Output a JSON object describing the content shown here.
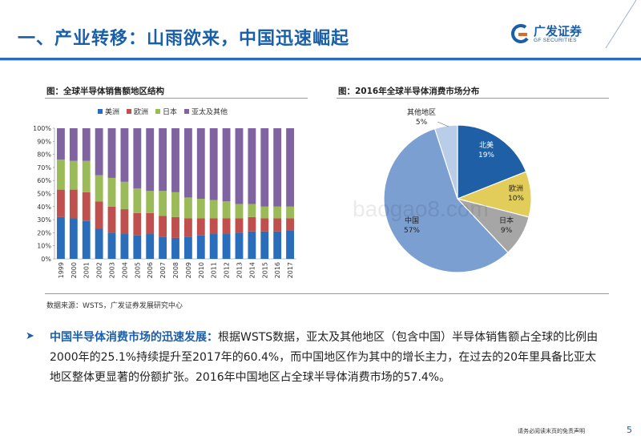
{
  "page": {
    "title": "一、产业转移：山雨欲来，中国迅速崛起",
    "logo_cn": "广发证券",
    "logo_en": "GF SECURITIES",
    "page_number": "5",
    "footer": "请务必阅读末页的免责声明",
    "watermark": "baogao8.com",
    "brand_color": "#1a5fa8"
  },
  "figures": {
    "left_caption": "图：全球半导体销售额地区结构",
    "right_caption": "图：2016年全球半导体消费市场分布",
    "source": "数据来源：WSTS，广发证券发展研究中心"
  },
  "paragraph": {
    "lead": "中国半导体消费市场的迅速发展：",
    "body": "根据WSTS数据，亚太及其他地区（包含中国）半导体销售额占全球的比例由2000年的25.1%持续提升至2017年的60.4%，而中国地区作为其中的增长主力，在过去的20年里具备比亚太地区整体更显著的份额扩张。2016年中国地区占全球半导体消费市场的57.4%。"
  },
  "chart_data": [
    {
      "type": "bar",
      "stacked": true,
      "categories": [
        "1999",
        "2000",
        "2001",
        "2002",
        "2003",
        "2004",
        "2005",
        "2006",
        "2007",
        "2008",
        "2009",
        "2010",
        "2011",
        "2012",
        "2013",
        "2014",
        "2015",
        "2016",
        "2017"
      ],
      "series": [
        {
          "name": "美洲",
          "color": "#2a6ebb",
          "values": [
            32,
            31,
            29,
            23,
            20,
            19,
            18,
            19,
            17,
            16,
            17,
            18,
            19,
            19,
            20,
            21,
            21,
            21,
            22
          ]
        },
        {
          "name": "欧洲",
          "color": "#c0504d",
          "values": [
            21,
            22,
            22,
            21,
            20,
            19,
            17,
            16,
            16,
            16,
            14,
            13,
            12,
            12,
            11,
            11,
            10,
            10,
            9
          ]
        },
        {
          "name": "日本",
          "color": "#9bbb59",
          "values": [
            23,
            22,
            24,
            20,
            22,
            21,
            19,
            17,
            19,
            19,
            16,
            15,
            14,
            13,
            11,
            10,
            9,
            9,
            9
          ]
        },
        {
          "name": "亚太及其他",
          "color": "#8064a2",
          "values": [
            24,
            25,
            25,
            36,
            38,
            41,
            46,
            48,
            48,
            49,
            53,
            54,
            55,
            56,
            58,
            58,
            60,
            60,
            60
          ]
        }
      ],
      "ylim": [
        0,
        100
      ],
      "yticks": [
        "0%",
        "10%",
        "20%",
        "30%",
        "40%",
        "50%",
        "60%",
        "70%",
        "80%",
        "90%",
        "100%"
      ],
      "legend_position": "top"
    },
    {
      "type": "pie",
      "slices": [
        {
          "label": "北美",
          "value": 19,
          "value_label": "19%",
          "color": "#1f5fa6"
        },
        {
          "label": "欧洲",
          "value": 10,
          "value_label": "10%",
          "color": "#e2cc5a"
        },
        {
          "label": "日本",
          "value": 9,
          "value_label": "9%",
          "color": "#a6a6a6"
        },
        {
          "label": "中国",
          "value": 57,
          "value_label": "57%",
          "color": "#7b9fd1"
        },
        {
          "label": "其他地区",
          "value": 5,
          "value_label": "5%",
          "color": "#b9cde9"
        }
      ]
    }
  ]
}
